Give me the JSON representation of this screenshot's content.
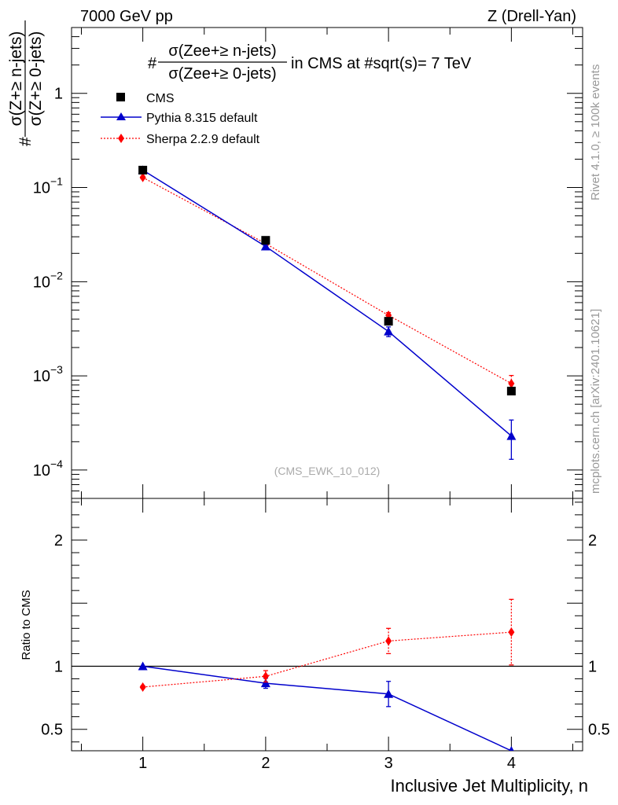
{
  "header": {
    "left_label": "7000 GeV pp",
    "right_label": "Z (Drell-Yan)"
  },
  "side_labels": {
    "rivet": "Rivet 4.1.0, ≥ 100k events",
    "mcplots": "mcplots.cern.ch [arXiv:2401.10621]"
  },
  "chart_data": [
    {
      "type": "line",
      "panel": "main",
      "title_prefix": "#",
      "title_numerator": "σ(Zee+≥ n-jets)",
      "title_denominator": "σ(Zee+≥ 0-jets)",
      "title_suffix": "in CMS at #sqrt(s)= 7 TeV",
      "ylabel_prefix": "#",
      "ylabel_numerator": "σ(Z+≥ n-jets)",
      "ylabel_denominator": "σ(Z+≥ 0-jets)",
      "yscale": "log",
      "ylim": [
        5e-05,
        5
      ],
      "xlim": [
        0.42,
        4.58
      ],
      "y_ticks": [
        {
          "value": 1,
          "label": "1",
          "sup": ""
        },
        {
          "value": 0.1,
          "label": "10",
          "sup": "−1"
        },
        {
          "value": 0.01,
          "label": "10",
          "sup": "−2"
        },
        {
          "value": 0.001,
          "label": "10",
          "sup": "−3"
        },
        {
          "value": 0.0001,
          "label": "10",
          "sup": "−4"
        }
      ],
      "watermark": "(CMS_EWK_10_012)",
      "legend_position": "top-left",
      "series": [
        {
          "name": "CMS",
          "color": "#000000",
          "marker": "square",
          "line": "none",
          "x": [
            1,
            2,
            3,
            4
          ],
          "y": [
            0.153,
            0.0275,
            0.0038,
            0.00069
          ]
        },
        {
          "name": "Pythia 8.315 default",
          "color": "#0000cc",
          "marker": "triangle",
          "line": "solid",
          "x": [
            1,
            2,
            3,
            4
          ],
          "y": [
            0.153,
            0.0237,
            0.00296,
            0.00023
          ],
          "err_low": [
            0,
            0.0012,
            0.00035,
            0.0001
          ],
          "err_high": [
            0,
            0.0012,
            0.00035,
            0.00011
          ]
        },
        {
          "name": "Sherpa 2.2.9 default",
          "color": "#ff0000",
          "marker": "diamond",
          "line": "dotted",
          "x": [
            1,
            2,
            3,
            4
          ],
          "y": [
            0.128,
            0.0254,
            0.0044,
            0.00083
          ],
          "err_low": [
            0.004,
            0.0012,
            0.0003,
            0.00018
          ],
          "err_high": [
            0.004,
            0.0012,
            0.0003,
            0.00018
          ]
        }
      ]
    },
    {
      "type": "line",
      "panel": "ratio",
      "ylabel": "Ratio to CMS",
      "xlabel": "Inclusive Jet Multiplicity, n",
      "yscale": "linear",
      "ylim": [
        0.33,
        2.33
      ],
      "xlim": [
        0.42,
        4.58
      ],
      "x_ticks": [
        1,
        2,
        3,
        4
      ],
      "x_tick_labels": [
        "1",
        "2",
        "3",
        "4"
      ],
      "y_ticks": [
        0.5,
        1,
        2
      ],
      "y_tick_labels": [
        "0.5",
        "1",
        "2"
      ],
      "reference": 1,
      "series": [
        {
          "name": "Pythia 8.315 default",
          "color": "#0000cc",
          "marker": "triangle",
          "line": "solid",
          "x": [
            1,
            2,
            3,
            4
          ],
          "y": [
            1.0,
            0.865,
            0.78,
            0.33
          ],
          "err_low": [
            0,
            0.04,
            0.1,
            0
          ],
          "err_high": [
            0,
            0.04,
            0.1,
            0
          ]
        },
        {
          "name": "Sherpa 2.2.9 default",
          "color": "#ff0000",
          "marker": "diamond",
          "line": "dotted",
          "x": [
            1,
            2,
            3,
            4
          ],
          "y": [
            0.835,
            0.92,
            1.2,
            1.27
          ],
          "err_low": [
            0.01,
            0.045,
            0.1,
            0.26
          ],
          "err_high": [
            0.01,
            0.045,
            0.1,
            0.26
          ]
        }
      ]
    }
  ]
}
